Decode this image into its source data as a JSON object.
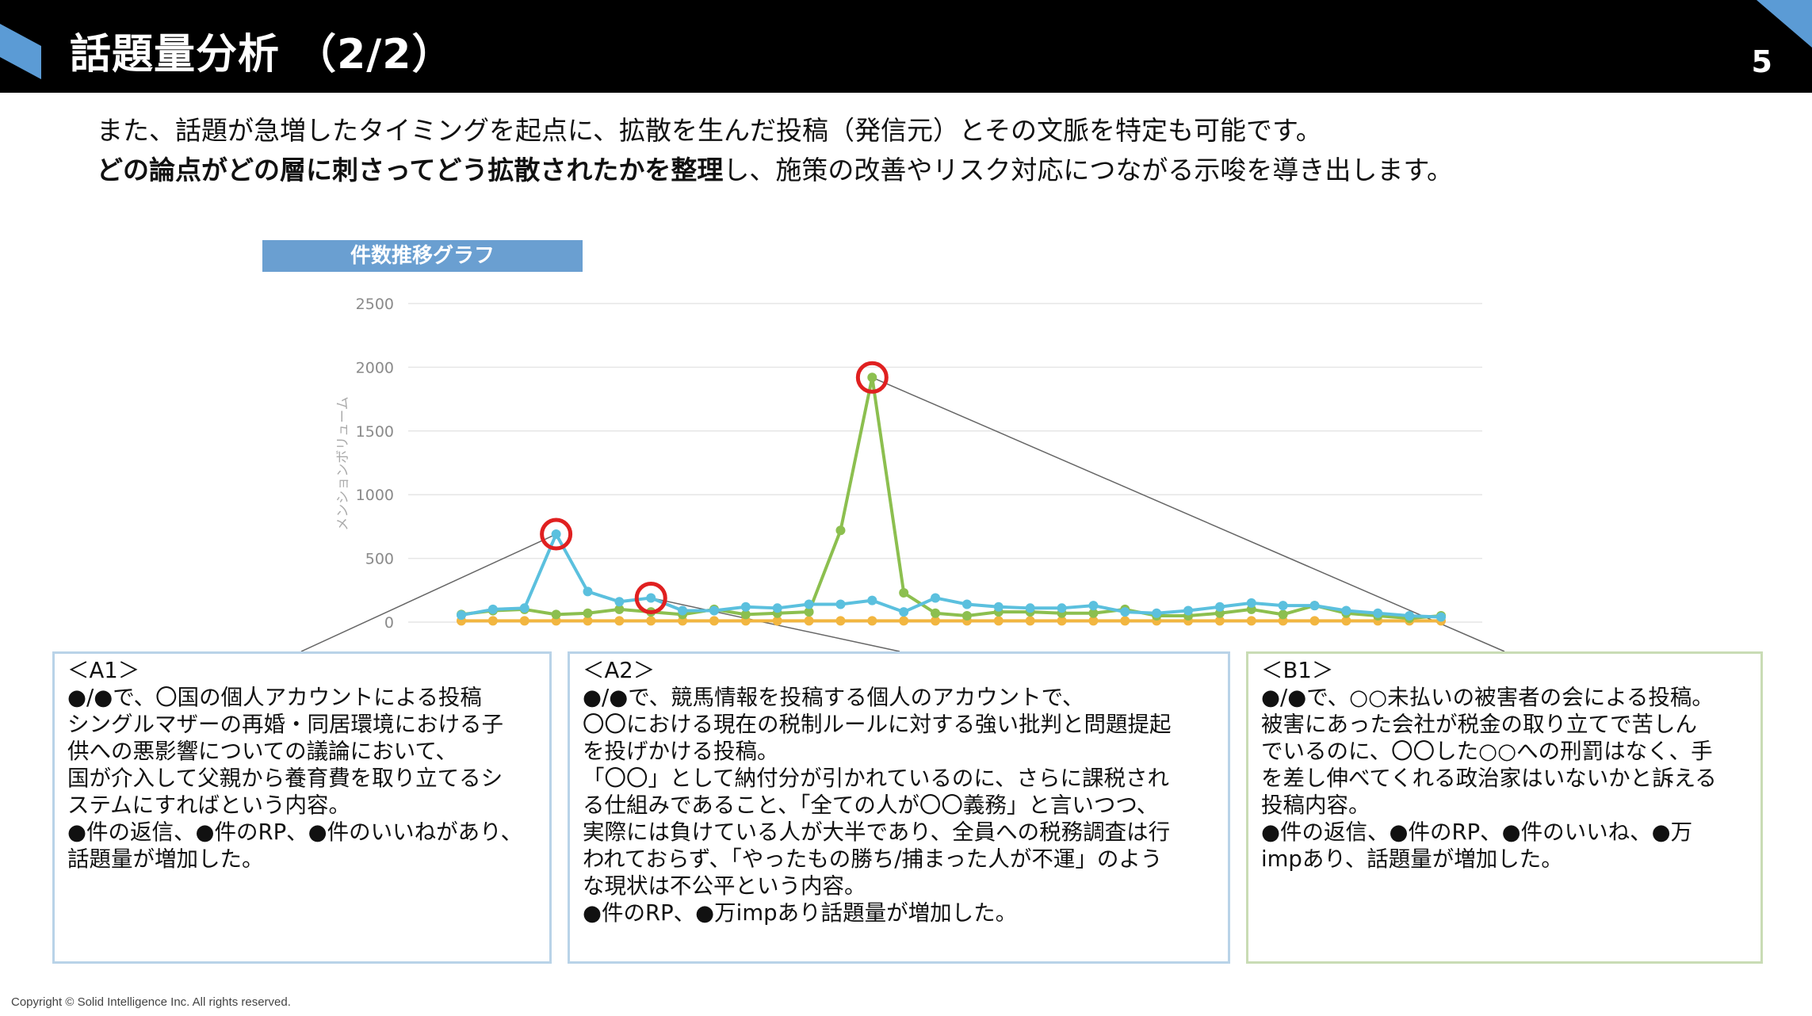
{
  "header": {
    "title": "話題量分析 （2/2）",
    "page_number": "5",
    "accent_color": "#5b9bd5"
  },
  "intro": {
    "line1": "また、話題が急増したタイミングを起点に、拡散を生んだ投稿（発信元）とその文脈を特定も可能です。",
    "line2_bold": "どの論点がどの層に刺さってどう拡散されたかを整理",
    "line2_rest": "し、施策の改善やリスク対応につながる示唆を導き出します。"
  },
  "chart_label": "件数推移グラフ",
  "chart_data": {
    "type": "line",
    "ylabel": "メンションボリューム",
    "ylim": [
      0,
      2500
    ],
    "yticks": [
      "0",
      "500",
      "1000",
      "1500",
      "2000",
      "2500"
    ],
    "grid": true,
    "x": [
      1,
      2,
      3,
      4,
      5,
      6,
      7,
      8,
      9,
      10,
      11,
      12,
      13,
      14,
      15,
      16,
      17,
      18,
      19,
      20,
      21,
      22,
      23,
      24,
      25,
      26,
      27,
      28,
      29,
      30,
      31,
      32
    ],
    "series": [
      {
        "color": "#5bc0de",
        "values": [
          55,
          100,
          110,
          690,
          240,
          160,
          190,
          90,
          90,
          120,
          110,
          140,
          140,
          170,
          80,
          190,
          140,
          120,
          110,
          110,
          130,
          80,
          70,
          90,
          120,
          150,
          130,
          130,
          90,
          70,
          50,
          40
        ]
      },
      {
        "color": "#8cbf4f",
        "values": [
          60,
          90,
          100,
          60,
          70,
          100,
          80,
          60,
          100,
          60,
          70,
          80,
          720,
          1920,
          230,
          70,
          50,
          80,
          80,
          70,
          70,
          100,
          50,
          50,
          70,
          100,
          60,
          130,
          70,
          50,
          30,
          50
        ]
      },
      {
        "color": "#f2b640",
        "values": [
          10,
          10,
          10,
          10,
          10,
          10,
          10,
          10,
          10,
          10,
          10,
          10,
          10,
          10,
          10,
          10,
          10,
          10,
          10,
          10,
          10,
          10,
          10,
          10,
          10,
          10,
          10,
          10,
          10,
          10,
          10,
          10
        ]
      }
    ],
    "highlighted_points": [
      {
        "series": 0,
        "x": 4,
        "label": "A1"
      },
      {
        "series": 0,
        "x": 7,
        "label": "A2"
      },
      {
        "series": 1,
        "x": 14,
        "label": "B1"
      }
    ]
  },
  "boxes": {
    "a1": {
      "title": "＜A1＞",
      "lines": [
        "●/●で、〇国の個人アカウントによる投稿",
        "シングルマザーの再婚・同居環境における子",
        "供への悪影響についての議論において、",
        "国が介入して父親から養育費を取り立てるシ",
        "ステムにすればという内容。",
        "●件の返信、●件のRP、●件のいいねがあり、",
        "話題量が増加した。"
      ]
    },
    "a2": {
      "title": "＜A2＞",
      "lines": [
        "●/●で、競馬情報を投稿する個人のアカウントで、",
        "〇〇における現在の税制ルールに対する強い批判と問題提起",
        "を投げかける投稿。",
        "「〇〇」として納付分が引かれているのに、さらに課税され",
        "る仕組みであること、「全ての人が〇〇義務」と言いつつ、",
        "実際には負けている人が大半であり、全員への税務調査は行",
        "われておらず、「やったもの勝ち/捕まった人が不運」のよう",
        "な現状は不公平という内容。",
        "●件のRP、●万impあり話題量が増加した。"
      ]
    },
    "b1": {
      "title": "＜B1＞",
      "lines": [
        "●/●で、○○未払いの被害者の会による投稿。",
        "被害にあった会社が税金の取り立てで苦しん",
        "でいるのに、〇〇した○○への刑罰はなく、手",
        "を差し伸べてくれる政治家はいないかと訴える",
        "投稿内容。",
        "●件の返信、●件のRP、●件のいいね、●万",
        "impあり、話題量が増加した。"
      ]
    }
  },
  "footer": {
    "copyright": "Copyright © Solid Intelligence Inc. All rights reserved."
  }
}
